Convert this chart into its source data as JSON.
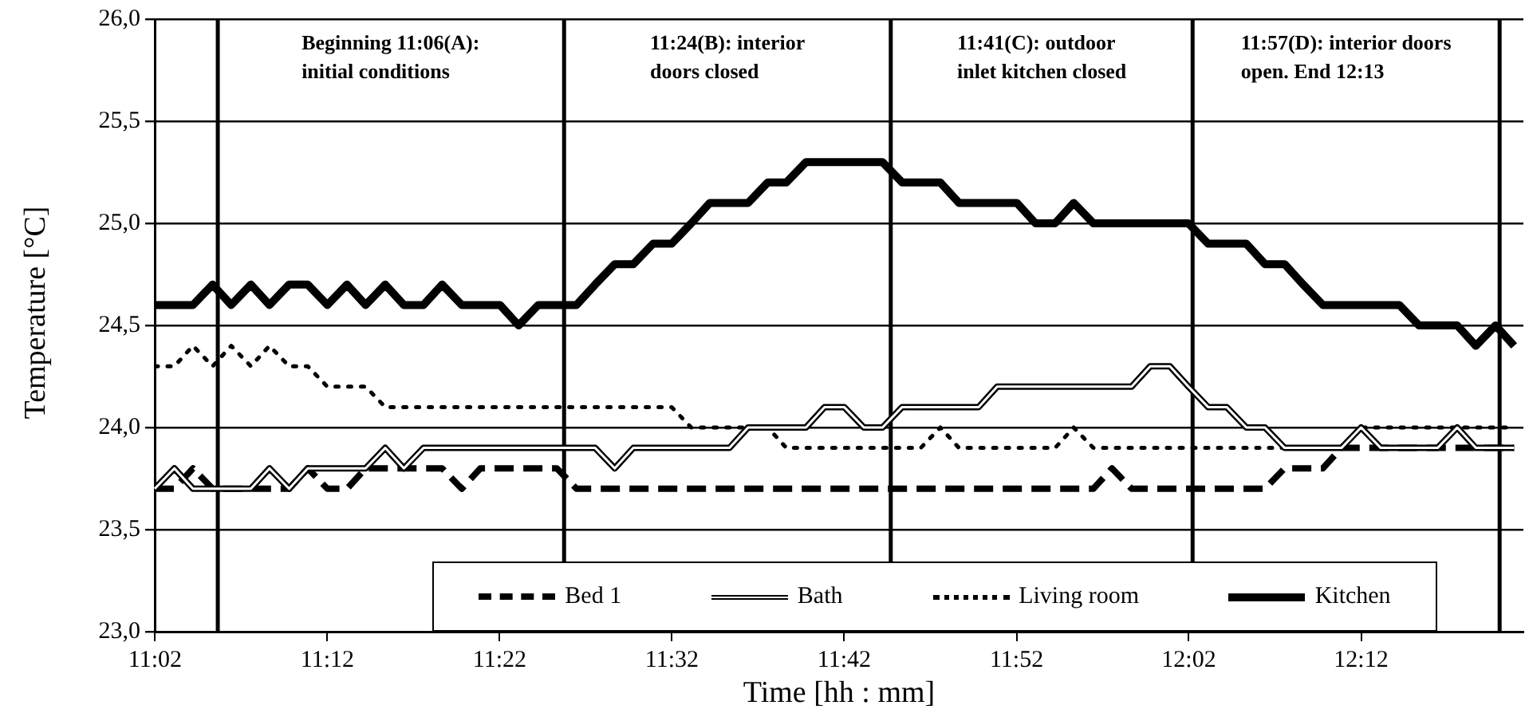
{
  "chart_data": {
    "type": "line",
    "xlabel": "Time [hh : mm]",
    "ylabel": "Temperature [°C]",
    "x": [
      11.033,
      11.052,
      11.07,
      11.089,
      11.107,
      11.126,
      11.144,
      11.163,
      11.181,
      11.2,
      11.219,
      11.237,
      11.256,
      11.274,
      11.293,
      11.311,
      11.33,
      11.348,
      11.367,
      11.385,
      11.404,
      11.422,
      11.441,
      11.459,
      11.478,
      11.496,
      11.515,
      11.533,
      11.552,
      11.57,
      11.589,
      11.607,
      11.626,
      11.644,
      11.663,
      11.681,
      11.7,
      11.719,
      11.737,
      11.756,
      11.774,
      11.793,
      11.811,
      11.83,
      11.848,
      11.867,
      11.885,
      11.904,
      11.922,
      11.941,
      11.959,
      11.978,
      11.996,
      12.015,
      12.033,
      12.052,
      12.07,
      12.089,
      12.107,
      12.126,
      12.144,
      12.163,
      12.181,
      12.2,
      12.219,
      12.237,
      12.256,
      12.274,
      12.293,
      12.311,
      12.33,
      12.348
    ],
    "series": [
      {
        "name": "Bed 1",
        "color": "#000000",
        "line_style": "dashed",
        "values": [
          23.7,
          23.7,
          23.8,
          23.7,
          23.7,
          23.7,
          23.7,
          23.7,
          23.8,
          23.7,
          23.7,
          23.8,
          23.8,
          23.8,
          23.8,
          23.8,
          23.7,
          23.8,
          23.8,
          23.8,
          23.8,
          23.8,
          23.7,
          23.7,
          23.7,
          23.7,
          23.7,
          23.7,
          23.7,
          23.7,
          23.7,
          23.7,
          23.7,
          23.7,
          23.7,
          23.7,
          23.7,
          23.7,
          23.7,
          23.7,
          23.7,
          23.7,
          23.7,
          23.7,
          23.7,
          23.7,
          23.7,
          23.7,
          23.7,
          23.7,
          23.8,
          23.7,
          23.7,
          23.7,
          23.7,
          23.7,
          23.7,
          23.7,
          23.7,
          23.8,
          23.8,
          23.8,
          23.9,
          23.9,
          23.9,
          23.9,
          23.9,
          23.9,
          23.9,
          23.9,
          23.9,
          23.9
        ]
      },
      {
        "name": "Bath",
        "color": "#000000",
        "line_style": "solid",
        "values": [
          23.7,
          23.8,
          23.7,
          23.7,
          23.7,
          23.7,
          23.8,
          23.7,
          23.8,
          23.8,
          23.8,
          23.8,
          23.9,
          23.8,
          23.9,
          23.9,
          23.9,
          23.9,
          23.9,
          23.9,
          23.9,
          23.9,
          23.9,
          23.9,
          23.8,
          23.9,
          23.9,
          23.9,
          23.9,
          23.9,
          23.9,
          24.0,
          24.0,
          24.0,
          24.0,
          24.1,
          24.1,
          24.0,
          24.0,
          24.1,
          24.1,
          24.1,
          24.1,
          24.1,
          24.2,
          24.2,
          24.2,
          24.2,
          24.2,
          24.2,
          24.2,
          24.2,
          24.3,
          24.3,
          24.2,
          24.1,
          24.1,
          24.0,
          24.0,
          23.9,
          23.9,
          23.9,
          23.9,
          24.0,
          23.9,
          23.9,
          23.9,
          23.9,
          24.0,
          23.9,
          23.9,
          23.9
        ]
      },
      {
        "name": "Living room",
        "color": "#000000",
        "line_style": "dotted",
        "values": [
          24.3,
          24.3,
          24.4,
          24.3,
          24.4,
          24.3,
          24.4,
          24.3,
          24.3,
          24.2,
          24.2,
          24.2,
          24.1,
          24.1,
          24.1,
          24.1,
          24.1,
          24.1,
          24.1,
          24.1,
          24.1,
          24.1,
          24.1,
          24.1,
          24.1,
          24.1,
          24.1,
          24.1,
          24.0,
          24.0,
          24.0,
          24.0,
          24.0,
          23.9,
          23.9,
          23.9,
          23.9,
          23.9,
          23.9,
          23.9,
          23.9,
          24.0,
          23.9,
          23.9,
          23.9,
          23.9,
          23.9,
          23.9,
          24.0,
          23.9,
          23.9,
          23.9,
          23.9,
          23.9,
          23.9,
          23.9,
          23.9,
          23.9,
          23.9,
          23.9,
          23.9,
          23.9,
          23.9,
          24.0,
          24.0,
          24.0,
          24.0,
          24.0,
          24.0,
          24.0,
          24.0,
          24.0
        ]
      },
      {
        "name": "Kitchen",
        "color": "#000000",
        "line_style": "solid",
        "values": [
          24.6,
          24.6,
          24.6,
          24.7,
          24.6,
          24.7,
          24.6,
          24.7,
          24.7,
          24.6,
          24.7,
          24.6,
          24.7,
          24.6,
          24.6,
          24.7,
          24.6,
          24.6,
          24.6,
          24.5,
          24.6,
          24.6,
          24.6,
          24.7,
          24.8,
          24.8,
          24.9,
          24.9,
          25.0,
          25.1,
          25.1,
          25.1,
          25.2,
          25.2,
          25.3,
          25.3,
          25.3,
          25.3,
          25.3,
          25.2,
          25.2,
          25.2,
          25.1,
          25.1,
          25.1,
          25.1,
          25.0,
          25.0,
          25.1,
          25.0,
          25.0,
          25.0,
          25.0,
          25.0,
          25.0,
          24.9,
          24.9,
          24.9,
          24.8,
          24.8,
          24.7,
          24.6,
          24.6,
          24.6,
          24.6,
          24.6,
          24.5,
          24.5,
          24.5,
          24.4,
          24.5,
          24.4
        ]
      }
    ],
    "xlim": [
      11.033,
      12.357
    ],
    "xticks": [
      {
        "value": 11.0333,
        "label": "11:02"
      },
      {
        "value": 11.2,
        "label": "11:12"
      },
      {
        "value": 11.3667,
        "label": "11:22"
      },
      {
        "value": 11.5333,
        "label": "11:32"
      },
      {
        "value": 11.7,
        "label": "11:42"
      },
      {
        "value": 11.8667,
        "label": "11:52"
      },
      {
        "value": 12.0333,
        "label": "12:02"
      },
      {
        "value": 12.2,
        "label": "12:12"
      }
    ],
    "ylim": [
      23,
      26
    ],
    "yticks": [
      {
        "value": 23,
        "label": "23,0"
      },
      {
        "value": 23.5,
        "label": "23,5"
      },
      {
        "value": 24,
        "label": "24,0"
      },
      {
        "value": 24.5,
        "label": "24,5"
      },
      {
        "value": 25,
        "label": "25,0"
      },
      {
        "value": 25.5,
        "label": "25,5"
      },
      {
        "value": 26,
        "label": "26,0"
      }
    ],
    "annotations": [
      "Beginning 11:06(A):\ninitial conditions",
      "11:24(B): interior\ndoors closed",
      "11:41(C): outdoor\ninlet kitchen closed",
      "11:57(D): interior doors\nopen. End 12:13"
    ],
    "ref_lines": [
      {
        "axis": "x",
        "value": 11.094
      },
      {
        "axis": "x",
        "value": 11.429
      },
      {
        "axis": "x",
        "value": 11.745
      },
      {
        "axis": "x",
        "value": 12.037
      },
      {
        "axis": "x",
        "value": 12.334
      }
    ],
    "grid": "y",
    "legend": "bottom",
    "marker": "none"
  }
}
